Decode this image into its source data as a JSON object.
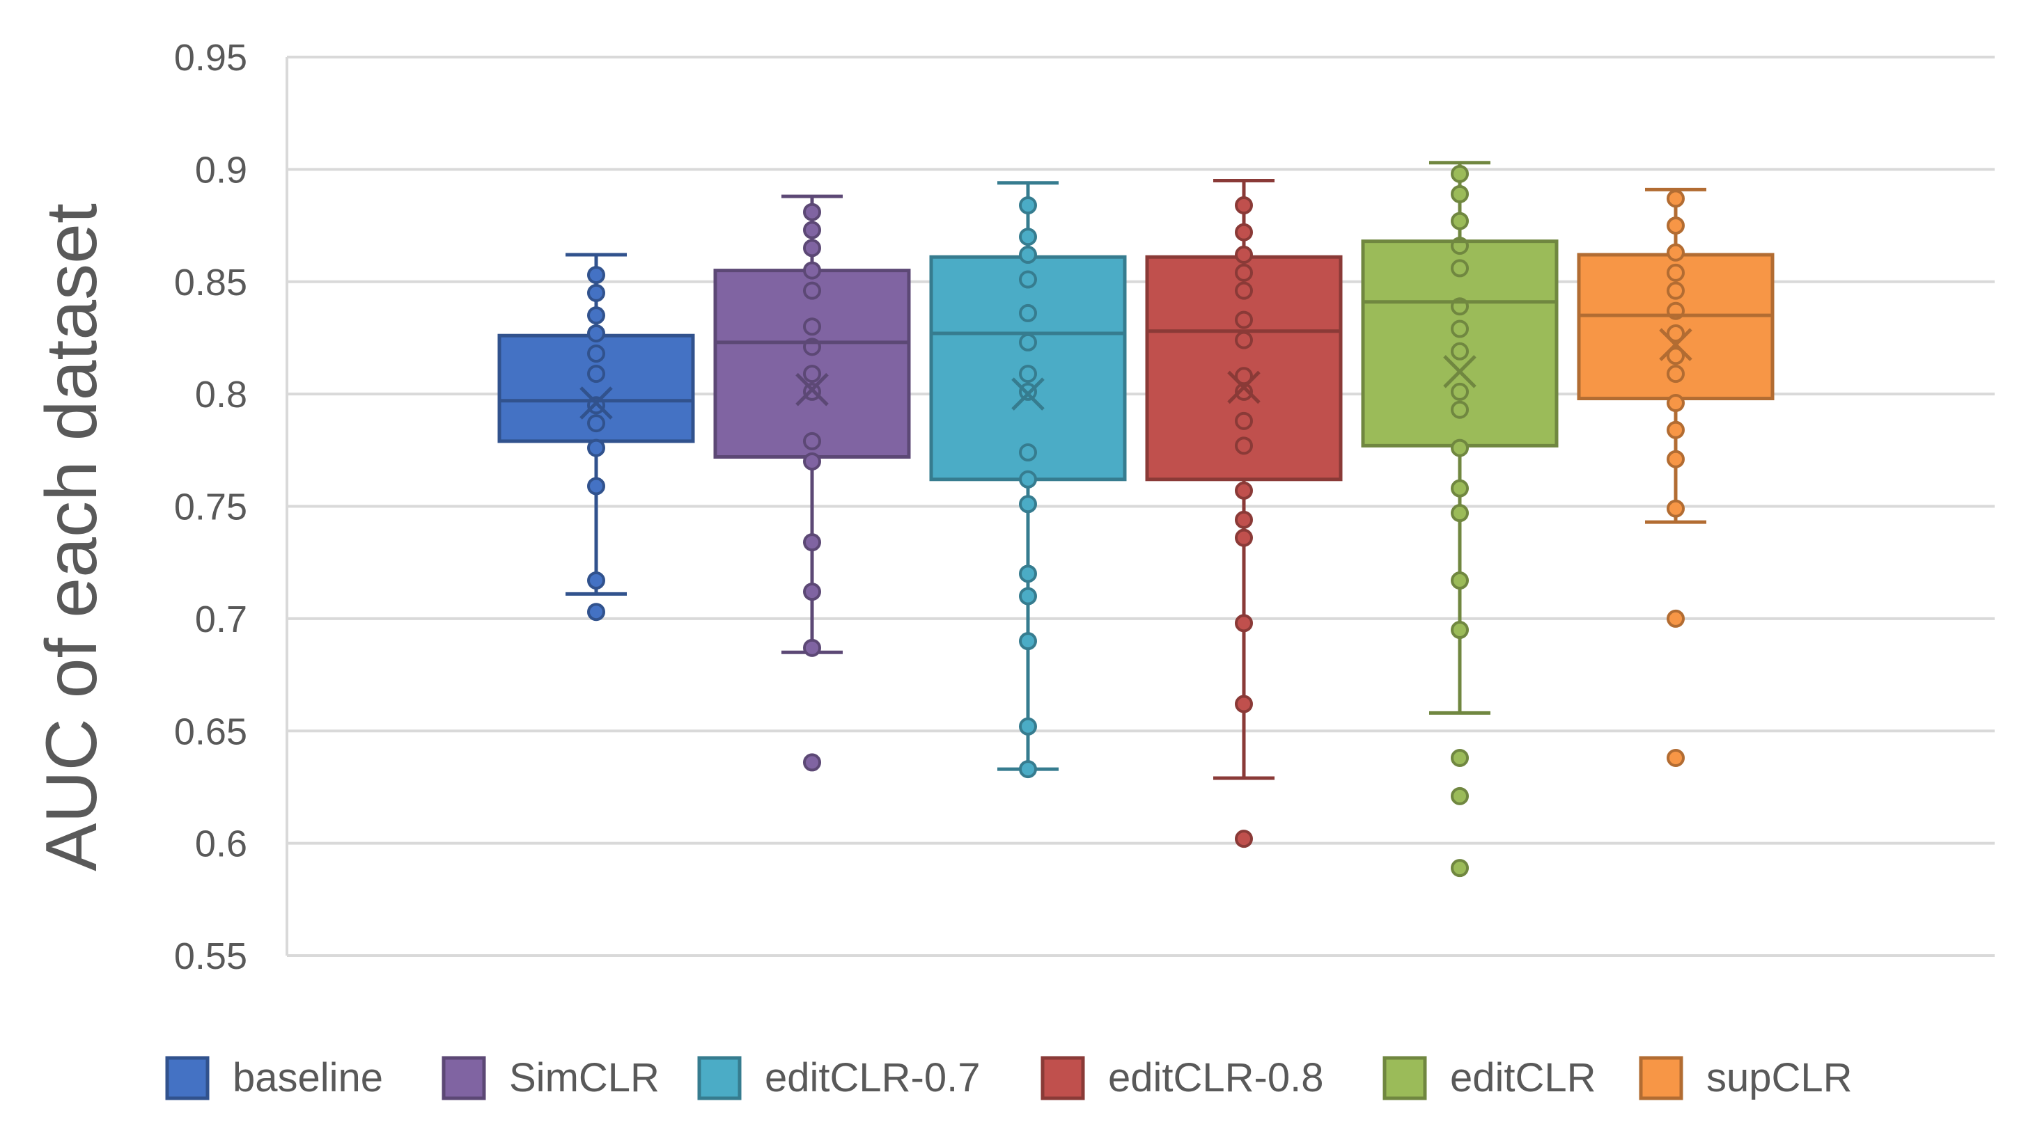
{
  "chart_data": {
    "type": "box",
    "title": "",
    "xlabel": "",
    "ylabel": "AUC of each dataset",
    "ylim": [
      0.55,
      0.95
    ],
    "yticks": [
      0.55,
      0.6,
      0.65,
      0.7,
      0.75,
      0.8,
      0.85,
      0.9,
      0.95
    ],
    "ytick_labels": [
      "0.55",
      "0.6",
      "0.65",
      "0.7",
      "0.75",
      "0.8",
      "0.85",
      "0.9",
      "0.95"
    ],
    "grid": true,
    "legend_position": "bottom",
    "series": [
      {
        "name": "baseline",
        "color": "#4472C4",
        "whisker_low": 0.711,
        "q1": 0.779,
        "median": 0.797,
        "q3": 0.826,
        "whisker_high": 0.862,
        "mean": 0.796,
        "points": [
          0.853,
          0.845,
          0.835,
          0.827,
          0.818,
          0.809,
          0.795,
          0.787,
          0.776,
          0.759,
          0.717,
          0.703
        ],
        "outliers": [
          0.703
        ]
      },
      {
        "name": "SimCLR",
        "color": "#8064A2",
        "whisker_low": 0.685,
        "q1": 0.772,
        "median": 0.823,
        "q3": 0.855,
        "whisker_high": 0.888,
        "mean": 0.802,
        "points": [
          0.881,
          0.873,
          0.865,
          0.855,
          0.846,
          0.83,
          0.821,
          0.809,
          0.801,
          0.779,
          0.77,
          0.734,
          0.712,
          0.687,
          0.636
        ],
        "outliers": [
          0.636
        ]
      },
      {
        "name": "editCLR-0.7",
        "color": "#4BACC6",
        "whisker_low": 0.633,
        "q1": 0.762,
        "median": 0.827,
        "q3": 0.861,
        "whisker_high": 0.894,
        "mean": 0.8,
        "points": [
          0.884,
          0.87,
          0.862,
          0.851,
          0.836,
          0.823,
          0.809,
          0.801,
          0.774,
          0.762,
          0.751,
          0.72,
          0.71,
          0.69,
          0.652,
          0.633
        ],
        "outliers": []
      },
      {
        "name": "editCLR-0.8",
        "color": "#C0504D",
        "whisker_low": 0.629,
        "q1": 0.762,
        "median": 0.828,
        "q3": 0.861,
        "whisker_high": 0.895,
        "mean": 0.803,
        "points": [
          0.884,
          0.872,
          0.862,
          0.854,
          0.846,
          0.833,
          0.824,
          0.808,
          0.801,
          0.788,
          0.777,
          0.757,
          0.744,
          0.736,
          0.698,
          0.662,
          0.602
        ],
        "outliers": [
          0.602
        ]
      },
      {
        "name": "editCLR",
        "color": "#9BBB59",
        "whisker_low": 0.658,
        "q1": 0.777,
        "median": 0.841,
        "q3": 0.868,
        "whisker_high": 0.903,
        "mean": 0.81,
        "points": [
          0.898,
          0.889,
          0.877,
          0.866,
          0.856,
          0.839,
          0.829,
          0.819,
          0.801,
          0.793,
          0.776,
          0.758,
          0.747,
          0.717,
          0.695,
          0.638,
          0.621,
          0.589
        ],
        "outliers": [
          0.638,
          0.621,
          0.589
        ]
      },
      {
        "name": "supCLR",
        "color": "#F79646",
        "whisker_low": 0.743,
        "q1": 0.798,
        "median": 0.835,
        "q3": 0.862,
        "whisker_high": 0.891,
        "mean": 0.822,
        "points": [
          0.887,
          0.875,
          0.863,
          0.854,
          0.846,
          0.837,
          0.827,
          0.817,
          0.809,
          0.796,
          0.784,
          0.771,
          0.749,
          0.7,
          0.638
        ],
        "outliers": [
          0.7,
          0.638
        ]
      }
    ]
  }
}
